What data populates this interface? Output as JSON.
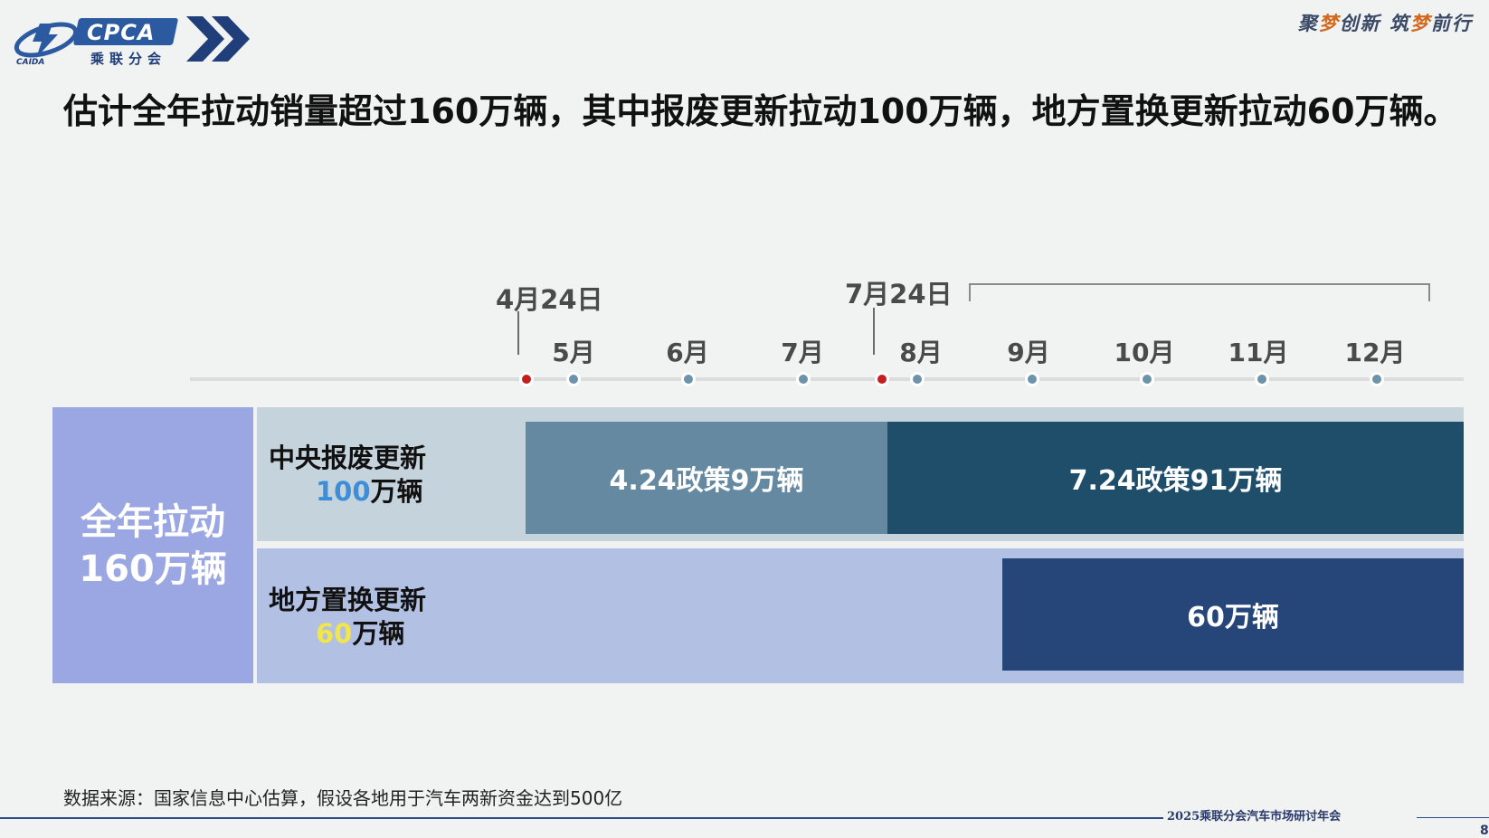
{
  "header": {
    "logo_text": "CPCA",
    "logo_cn": "乘联分会",
    "logo_sub": "CAIDA",
    "slogan_parts": [
      "聚",
      "梦",
      "创新 筑",
      "梦",
      "前行"
    ]
  },
  "headline": "估计全年拉动销量超过160万辆，其中报废更新拉动100万辆，地方置换更新拉动60万辆。",
  "timeline": {
    "date_markers": [
      "4月24日",
      "7月24日"
    ],
    "months": [
      "5月",
      "6月",
      "7月",
      "8月",
      "9月",
      "10月",
      "11月",
      "12月"
    ]
  },
  "table": {
    "total": {
      "line1": "全年拉动",
      "line2": "160万辆"
    },
    "rows": [
      {
        "label": "中央报废更新",
        "value": "100",
        "unit": "万辆"
      },
      {
        "label": "地方置换更新",
        "value": "60",
        "unit": "万辆"
      }
    ],
    "bars": [
      "4.24政策9万辆",
      "7.24政策91万辆",
      "60万辆"
    ]
  },
  "footer": {
    "source": "数据来源：国家信息中心估算，假设各地用于汽车两新资金达到500亿",
    "event": "2025乘联分会汽车市场研讨年会",
    "page": "8"
  },
  "colors": {
    "total_cell": "#9ba7e2",
    "row1_bg": "#c5d3dc",
    "row2_bg": "#b2c0e3",
    "bar_424": "#6689a2",
    "bar_724": "#1e4e6a",
    "bar_local": "#26467a",
    "dot_month": "#6d93aa",
    "dot_policy": "#c41e1e",
    "accent_blue": "#3d8ed8",
    "accent_yellow": "#f2e648"
  }
}
